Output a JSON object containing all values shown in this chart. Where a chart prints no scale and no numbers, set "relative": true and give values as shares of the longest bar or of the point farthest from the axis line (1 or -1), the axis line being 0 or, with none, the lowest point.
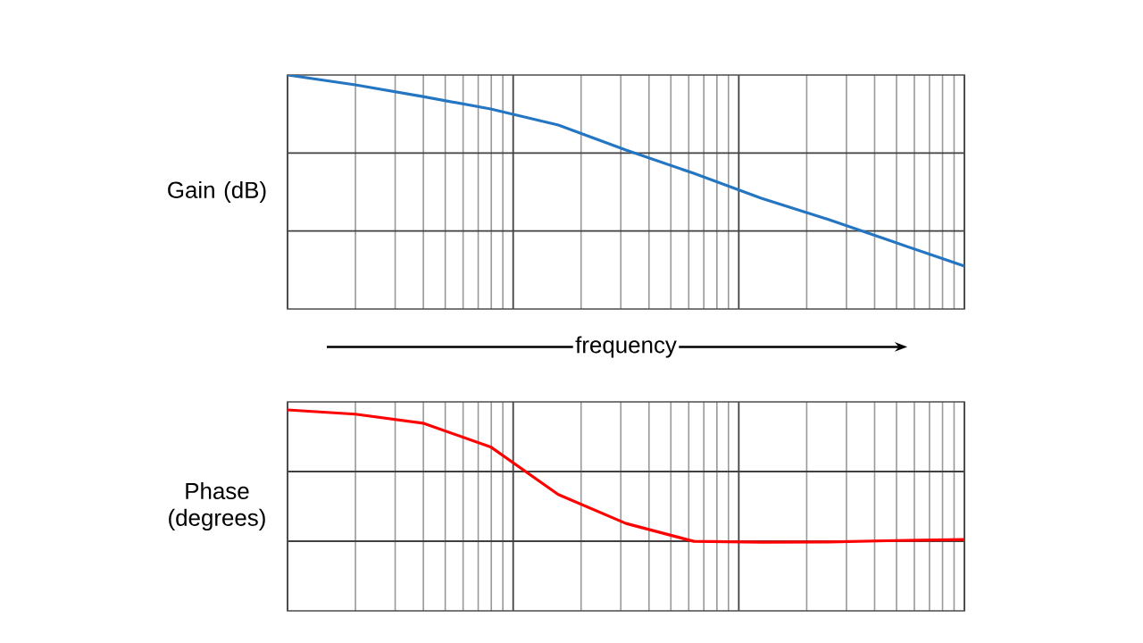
{
  "chart_data": [
    {
      "type": "line",
      "ylabel": "Gain (dB)",
      "xlabel": "frequency",
      "relative": true,
      "grid": true,
      "tick_labels": false,
      "marker": "none",
      "line_style": "solid",
      "categories": [
        null,
        null,
        null,
        null,
        null,
        null,
        null,
        null,
        null,
        null,
        null
      ],
      "series": [
        {
          "color": "#2576c2",
          "values": [
            1,
            0.958,
            0.908,
            0.855,
            0.786,
            0.679,
            0.58,
            0.473,
            0.382,
            0.282,
            0.183
          ]
        }
      ]
    },
    {
      "type": "line",
      "ylabel": "Phase (degrees)",
      "relative": true,
      "grid": true,
      "tick_labels": false,
      "marker": "none",
      "line_style": "solid",
      "categories": [
        null,
        null,
        null,
        null,
        null,
        null,
        null,
        null,
        null,
        null,
        null
      ],
      "series": [
        {
          "color": "#ff0000",
          "values": [
            1,
            0.979,
            0.934,
            0.816,
            0.579,
            0.435,
            0.346,
            0.342,
            0.343,
            0.35,
            0.355
          ]
        }
      ]
    }
  ]
}
